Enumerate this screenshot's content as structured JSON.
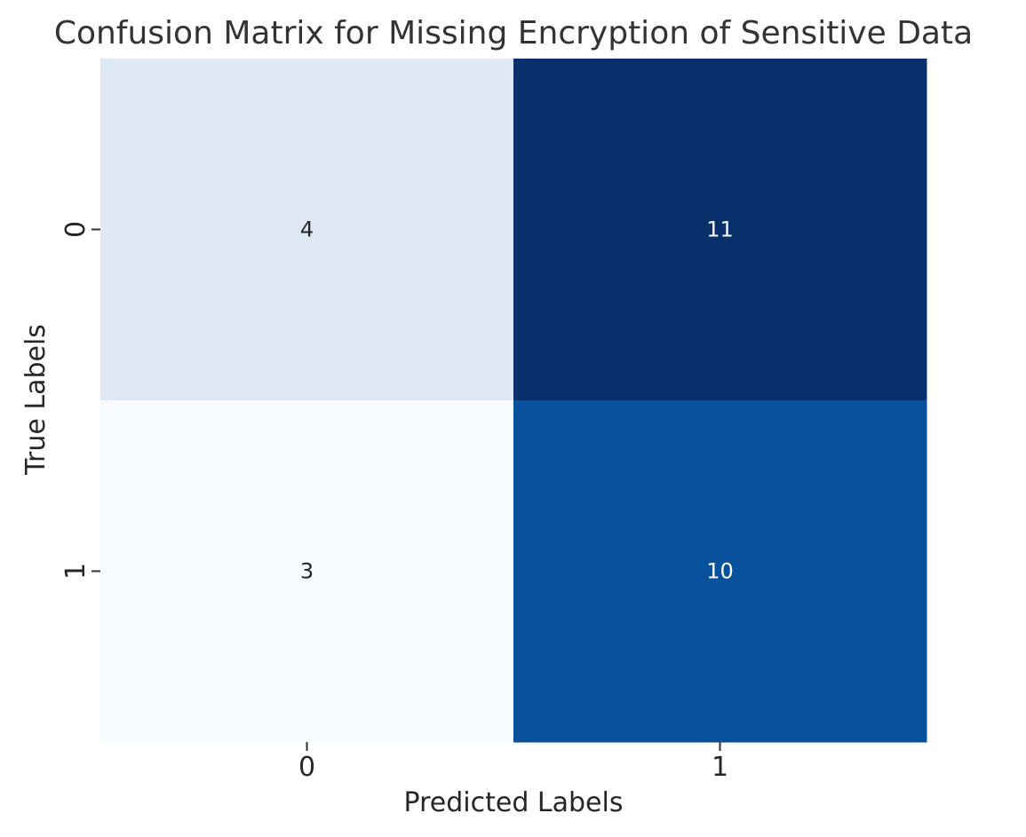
{
  "chart_data": {
    "type": "heatmap",
    "title": "Confusion Matrix for Missing Encryption of Sensitive Data",
    "xlabel": "Predicted Labels",
    "ylabel": "True Labels",
    "x_categories": [
      "0",
      "1"
    ],
    "y_categories": [
      "0",
      "1"
    ],
    "values": [
      [
        4,
        11
      ],
      [
        3,
        10
      ]
    ],
    "colormap": "Blues",
    "vmin": 3,
    "vmax": 11,
    "colorbar": false,
    "cell_colors": [
      [
        "#dee9f5",
        "#0a306b"
      ],
      [
        "#f7fbff",
        "#08519c"
      ]
    ],
    "annotation_colors": [
      [
        "#262626",
        "#ffffff"
      ],
      [
        "#262626",
        "#ffffff"
      ]
    ]
  }
}
